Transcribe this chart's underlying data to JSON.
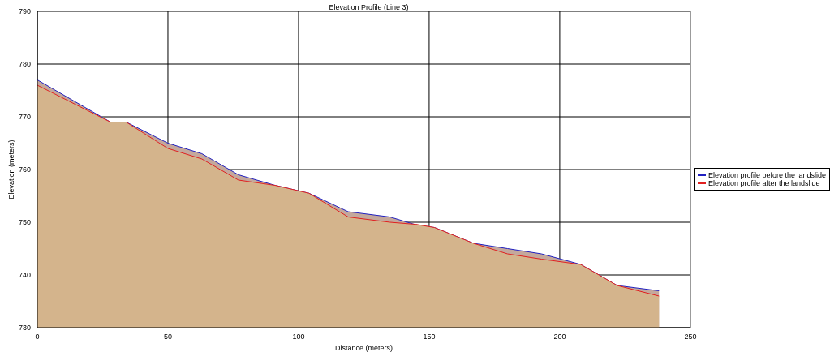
{
  "chart_data": {
    "type": "area",
    "title": "Elevation Profile (Line 3)",
    "xlabel": "Distance (meters)",
    "ylabel": "Elevation (meters)",
    "x": [
      0,
      28,
      34,
      50,
      63,
      77,
      91,
      104,
      119,
      135,
      145,
      152,
      167,
      180,
      193,
      208,
      222,
      238
    ],
    "series": [
      {
        "name": "Elevation profile before the landslide",
        "color": "#2020c0",
        "values": [
          777,
          769,
          769,
          765,
          763,
          759,
          757,
          755.5,
          752,
          751,
          749.5,
          749,
          746,
          745,
          744,
          742,
          738,
          737
        ]
      },
      {
        "name": "Elevation profile after the landslide",
        "color": "#e02020",
        "values": [
          776,
          769,
          769,
          764,
          762,
          758,
          757,
          755.5,
          751,
          750,
          749.6,
          749,
          746,
          744,
          743,
          742,
          738,
          736
        ]
      }
    ],
    "xlim": [
      0,
      250
    ],
    "xticks": [
      0,
      50,
      100,
      150,
      200,
      250
    ],
    "ylim": [
      730,
      790
    ],
    "yticks": [
      730,
      740,
      750,
      760,
      770,
      780,
      790
    ],
    "grid": true,
    "legend": "right"
  }
}
